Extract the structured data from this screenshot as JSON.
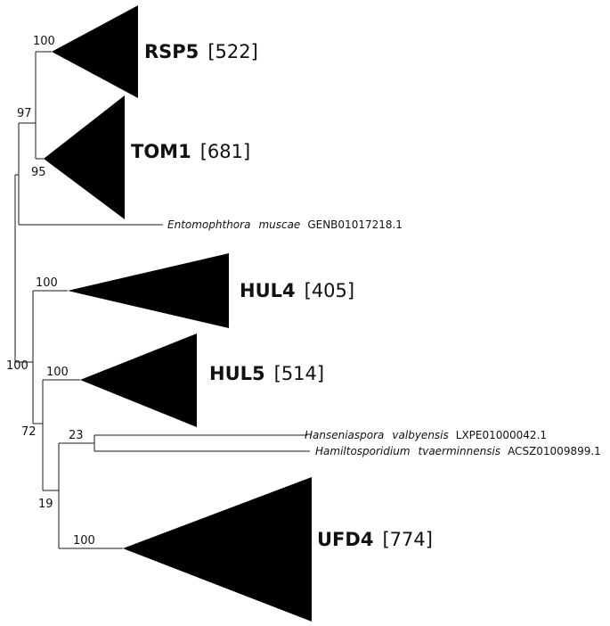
{
  "clades": [
    {
      "id": "rsp5",
      "name": "RSP5",
      "count": "[522]",
      "support": "100"
    },
    {
      "id": "tom1",
      "name": "TOM1",
      "count": "[681]",
      "support": "95"
    },
    {
      "id": "hul4",
      "name": "HUL4",
      "count": "[405]",
      "support": "100"
    },
    {
      "id": "hul5",
      "name": "HUL5",
      "count": "[514]",
      "support": "100"
    },
    {
      "id": "ufd4",
      "name": "UFD4",
      "count": "[774]",
      "support": "100"
    }
  ],
  "leaves": [
    {
      "id": "entomophthora",
      "genus": "Entomophthora",
      "species": "muscae",
      "accession": "GENB01017218.1"
    },
    {
      "id": "hanseniaspora",
      "genus": "Hanseniaspora",
      "species": "valbyensis",
      "accession": "LXPE01000042.1"
    },
    {
      "id": "hamiltosporidium",
      "genus": "Hamiltosporidium",
      "species": "tvaerminnensis",
      "accession": "ACSZ01009899.1"
    }
  ],
  "internal_support": {
    "rsp5_tom1": "97",
    "root_lower": "100",
    "hul5_rest": "72",
    "ufd4_rest": "19",
    "hanseniaspora_hamiltosporidium": "23"
  }
}
